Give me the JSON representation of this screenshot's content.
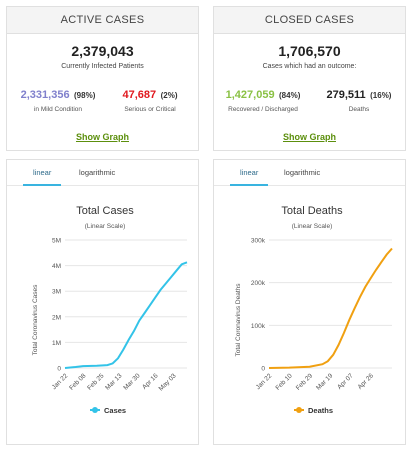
{
  "active_cases": {
    "header": "ACTIVE CASES",
    "total": "2,379,043",
    "total_label": "Currently Infected Patients",
    "mild": {
      "value": "2,331,356",
      "pct": "(98%)",
      "label": "in Mild Condition"
    },
    "serious": {
      "value": "47,687",
      "pct": "(2%)",
      "label": "Serious or Critical"
    },
    "show_graph": "Show Graph"
  },
  "closed_cases": {
    "header": "CLOSED CASES",
    "total": "1,706,570",
    "total_label": "Cases which had an outcome:",
    "recovered": {
      "value": "1,427,059",
      "pct": "(84%)",
      "label": "Recovered / Discharged"
    },
    "deaths": {
      "value": "279,511",
      "pct": "(16%)",
      "label": "Deaths"
    },
    "show_graph": "Show Graph"
  },
  "tabs": {
    "linear": "linear",
    "logarithmic": "logarithmic"
  },
  "colors": {
    "cases_line": "#33c3e8",
    "deaths_line": "#f0a011",
    "tab_accent": "#39b4e0",
    "mild": "#8080cc",
    "serious": "#e0181e",
    "recovered": "#8ac144",
    "link": "#5c8f0d"
  },
  "chart_data": [
    {
      "type": "line",
      "title": "Total Cases",
      "subtitle": "(Linear Scale)",
      "ylabel": "Total Coronavirus Cases",
      "xlabel": "",
      "x_tick_labels": [
        "Jan 22",
        "Feb 08",
        "Feb 25",
        "Mar 13",
        "Mar 30",
        "Apr 16",
        "May 03"
      ],
      "y_tick_labels": [
        "0",
        "1M",
        "2M",
        "3M",
        "4M",
        "5M"
      ],
      "ylim": [
        0,
        5000000
      ],
      "grid": true,
      "legend": "bottom",
      "series": [
        {
          "name": "Cases",
          "x": [
            0,
            10,
            17,
            30,
            40,
            45,
            50,
            55,
            60,
            65,
            70,
            75,
            80,
            85,
            90,
            95,
            100,
            105,
            110,
            115
          ],
          "values": [
            555,
            40000,
            75000,
            87000,
            115000,
            180000,
            380000,
            720000,
            1100000,
            1450000,
            1850000,
            2150000,
            2450000,
            2750000,
            3050000,
            3300000,
            3550000,
            3800000,
            4050000,
            4130000
          ]
        }
      ],
      "x_tick_positions": [
        0,
        17,
        34,
        51,
        68,
        85,
        102
      ]
    },
    {
      "type": "line",
      "title": "Total Deaths",
      "subtitle": "(Linear Scale)",
      "ylabel": "Total Coronavirus Deaths",
      "xlabel": "",
      "x_tick_labels": [
        "Jan 22",
        "Feb 10",
        "Feb 29",
        "Mar 19",
        "Apr 07",
        "Apr 26"
      ],
      "y_tick_labels": [
        "0",
        "100k",
        "200k",
        "300k"
      ],
      "ylim": [
        0,
        300000
      ],
      "grid": true,
      "legend": "bottom",
      "series": [
        {
          "name": "Deaths",
          "x": [
            0,
            19,
            38,
            50,
            55,
            60,
            65,
            70,
            75,
            80,
            85,
            90,
            95,
            100,
            105,
            110,
            115
          ],
          "values": [
            17,
            900,
            3000,
            9000,
            16000,
            31000,
            54000,
            82000,
            112000,
            140000,
            166000,
            190000,
            210000,
            230000,
            248000,
            266000,
            280000
          ]
        }
      ],
      "x_tick_positions": [
        0,
        19,
        38,
        57,
        76,
        95
      ]
    }
  ]
}
